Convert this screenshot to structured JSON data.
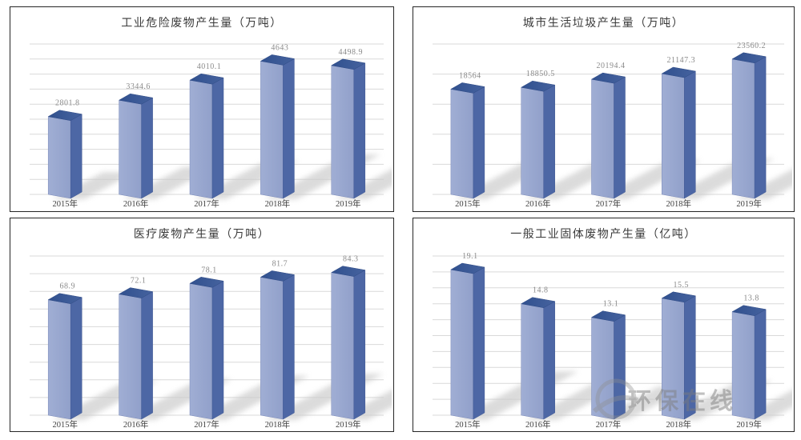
{
  "page": {
    "background": "#ffffff",
    "panel_border_color": "#262626",
    "watermark": {
      "icon": "swoosh-circle-logo",
      "text": "环保在线"
    }
  },
  "style": {
    "bar_front_color": "#91a0ca",
    "bar_front_color_light": "#a0aed4",
    "bar_side_color": "#4d67a5",
    "bar_top_color_dark": "#30508e",
    "bar_top_color_light": "#46639f",
    "shadow_color": "#cccccc",
    "gridline_color": "#d9d9d9",
    "title_color": "#3a3a3a",
    "value_label_color": "#8a8a8a",
    "axis_label_color": "#3f3f3f"
  },
  "chart_data": [
    {
      "id": "industrial-hazardous-waste-chart",
      "type": "bar",
      "title": "工业危险废物产生量（万吨）",
      "categories": [
        "2015年",
        "2016年",
        "2017年",
        "2018年",
        "2019年"
      ],
      "values": [
        2801.8,
        3344.6,
        4010.1,
        4643,
        4498.9
      ],
      "value_labels": [
        "2801.8",
        "3344.6",
        "4010.1",
        "4643",
        "4498.9"
      ],
      "xlabel": "",
      "ylabel": "",
      "ylim": [
        0,
        5000
      ],
      "gridline_count": 11,
      "grid": true,
      "legend": "none"
    },
    {
      "id": "municipal-household-waste-chart",
      "type": "bar",
      "title": "城市生活垃圾产生量（万吨）",
      "categories": [
        "2015年",
        "2016年",
        "2017年",
        "2018年",
        "2019年"
      ],
      "values": [
        18564,
        18850.5,
        20194.4,
        21147.3,
        23560.2
      ],
      "value_labels": [
        "18564",
        "18850.5",
        "20194.4",
        "21147.3",
        "23560.2"
      ],
      "xlabel": "",
      "ylabel": "",
      "ylim": [
        0,
        25000
      ],
      "gridline_count": 6,
      "grid": true,
      "legend": "none"
    },
    {
      "id": "medical-waste-chart",
      "type": "bar",
      "title": "医疗废物产生量（万吨）",
      "categories": [
        "2015年",
        "2016年",
        "2017年",
        "2018年",
        "2019年"
      ],
      "values": [
        68.9,
        72.1,
        78.1,
        81.7,
        84.3
      ],
      "value_labels": [
        "68.9",
        "72.1",
        "78.1",
        "81.7",
        "84.3"
      ],
      "xlabel": "",
      "ylabel": "",
      "ylim": [
        0,
        90
      ],
      "gridline_count": 10,
      "grid": true,
      "legend": "none"
    },
    {
      "id": "general-industrial-solid-waste-chart",
      "type": "bar",
      "title": "一般工业固体废物产生量（亿吨）",
      "categories": [
        "2015年",
        "2016年",
        "2017年",
        "2018年",
        "2019年"
      ],
      "values": [
        19.1,
        14.8,
        13.1,
        15.5,
        13.8
      ],
      "value_labels": [
        "19.1",
        "14.8",
        "13.1",
        "15.5",
        "13.8"
      ],
      "xlabel": "",
      "ylabel": "",
      "ylim": [
        0,
        20
      ],
      "gridline_count": 11,
      "grid": true,
      "legend": "none"
    }
  ]
}
